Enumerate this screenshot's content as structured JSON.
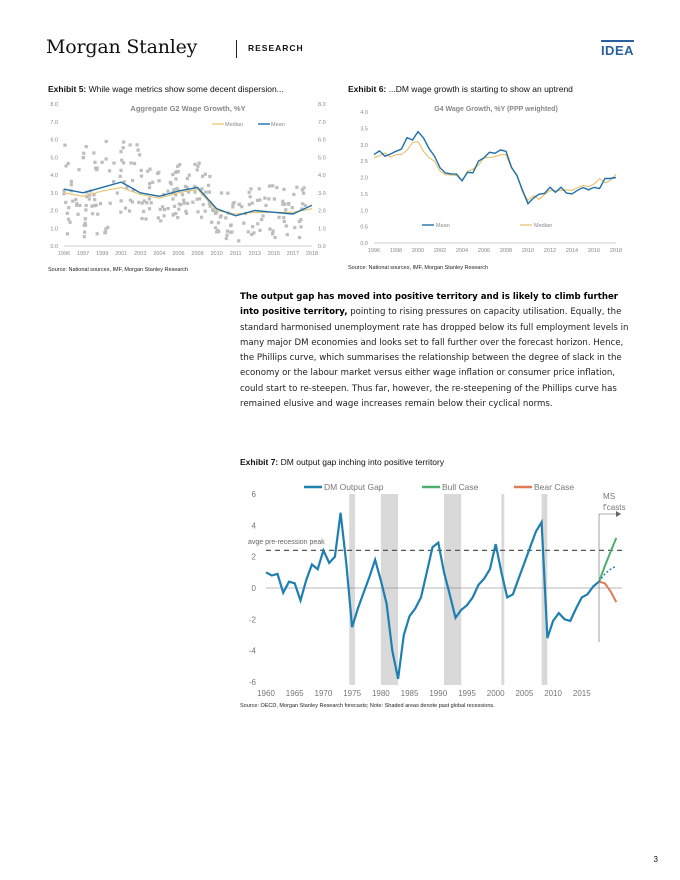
{
  "header": {
    "brand": "Morgan Stanley",
    "section": "RESEARCH",
    "tag": "IDEA"
  },
  "exhibit5": {
    "label": "Exhibit 5:",
    "caption": "While wage metrics show some decent dispersion...",
    "source": "Source: National sources, IMF, Morgan Stanley Research",
    "chart_data": {
      "type": "line",
      "title": "Aggregate G2 Wage Growth, %Y",
      "x": [
        "1996",
        "1997",
        "1999",
        "2001",
        "2003",
        "2004",
        "2006",
        "2008",
        "2010",
        "2011",
        "2013",
        "2015",
        "2017",
        "2018"
      ],
      "yticks": [
        "0.0",
        "1.0",
        "2.0",
        "3.0",
        "4.0",
        "5.0",
        "6.0",
        "7.0",
        "8.0"
      ],
      "ylim": [
        0,
        8
      ],
      "legend": [
        "Median",
        "Mean"
      ],
      "series": [
        {
          "name": "Mean",
          "color": "#1f6fa6",
          "values": [
            3.2,
            3.0,
            3.3,
            3.6,
            3.0,
            2.8,
            3.1,
            3.3,
            2.1,
            1.7,
            2.0,
            1.9,
            1.8,
            2.3
          ]
        },
        {
          "name": "Median",
          "color": "#e5c06a",
          "values": [
            3.0,
            2.8,
            3.1,
            3.3,
            2.9,
            2.7,
            3.0,
            3.2,
            2.0,
            1.8,
            1.9,
            1.9,
            1.9,
            2.1
          ]
        }
      ]
    }
  },
  "exhibit6": {
    "label": "Exhibit 6:",
    "caption": "...DM wage growth is starting to show an uptrend",
    "source": "Source: National sources, IMF, Morgan Stanley Research",
    "chart_data": {
      "type": "line",
      "title": "G4 Wage Growth, %Y (PPP weighted)",
      "x": [
        "1996",
        "1998",
        "2000",
        "2002",
        "2004",
        "2006",
        "2008",
        "2010",
        "2012",
        "2014",
        "2016",
        "2018"
      ],
      "yticks": [
        "0.0",
        "0.5",
        "1.0",
        "1.5",
        "2.0",
        "2.5",
        "3.0",
        "3.5",
        "4.0"
      ],
      "ylim": [
        0,
        4
      ],
      "legend": [
        "Mean",
        "Median"
      ],
      "series": [
        {
          "name": "Mean",
          "color": "#1f6fa6",
          "values": [
            2.7,
            2.8,
            3.4,
            2.3,
            1.9,
            2.6,
            2.8,
            1.2,
            1.7,
            1.5,
            1.7,
            2.0
          ]
        },
        {
          "name": "Median",
          "color": "#e5c06a",
          "values": [
            2.6,
            2.7,
            3.1,
            2.2,
            1.9,
            2.6,
            2.7,
            1.3,
            1.6,
            1.6,
            1.8,
            2.1
          ]
        }
      ]
    }
  },
  "paragraph": {
    "bold_lead": "The output gap has moved into positive territory and is likely to climb further into positive territory,",
    "body": " pointing to rising pressures on capacity utilisation. Equally, the standard harmonised unemployment rate has dropped below its full employment levels in many major DM economies and looks set to fall further over the forecast horizon. Hence, the Phillips curve, which summarises the relationship between the degree of slack in the economy or the labour market versus either wage inflation or consumer price inflation, could start to re-steepen. Thus far, however, the re-steepening of the Phillips curve has remained elusive and wage increases remain below their cyclical norms."
  },
  "exhibit7": {
    "label": "Exhibit 7:",
    "caption": "DM output gap inching into positive territory",
    "source": "Source: OECD, Morgan Stanley Research forecasts; Note: Shaded areas denote past global recessions.",
    "annotation_avg": "avge pre-recession peak",
    "annotation_forecast": "MS f'casts",
    "chart_data": {
      "type": "line",
      "x": [
        1960,
        1965,
        1970,
        1975,
        1980,
        1985,
        1990,
        1995,
        2000,
        2005,
        2010,
        2015
      ],
      "yticks": [
        "6",
        "4",
        "2",
        "0",
        "-2",
        "-4",
        "-6"
      ],
      "ylim": [
        -6,
        6
      ],
      "legend": [
        "DM Output Gap",
        "Bull Case",
        "Bear Case"
      ],
      "avg_pre_recession_peak": 2.4,
      "recessions": [
        [
          1974.5,
          1975.5
        ],
        [
          1980,
          1983
        ],
        [
          1991,
          1994
        ],
        [
          2001,
          2001.5
        ],
        [
          2008,
          2009
        ]
      ],
      "series": [
        {
          "name": "DM Output Gap",
          "color": "#1f7fb0",
          "points": [
            [
              1960,
              1.0
            ],
            [
              1961,
              0.8
            ],
            [
              1962,
              0.9
            ],
            [
              1963,
              -0.3
            ],
            [
              1964,
              0.4
            ],
            [
              1965,
              0.3
            ],
            [
              1966,
              -0.8
            ],
            [
              1967,
              0.5
            ],
            [
              1968,
              1.5
            ],
            [
              1969,
              1.2
            ],
            [
              1970,
              2.4
            ],
            [
              1971,
              1.6
            ],
            [
              1972,
              2.0
            ],
            [
              1973,
              4.8
            ],
            [
              1974,
              1.5
            ],
            [
              1975,
              -2.5
            ],
            [
              1976,
              -1.3
            ],
            [
              1977,
              -0.3
            ],
            [
              1978,
              0.7
            ],
            [
              1979,
              1.8
            ],
            [
              1980,
              0.5
            ],
            [
              1981,
              -1.0
            ],
            [
              1982,
              -4.0
            ],
            [
              1983,
              -5.8
            ],
            [
              1984,
              -3.0
            ],
            [
              1985,
              -1.8
            ],
            [
              1986,
              -1.3
            ],
            [
              1987,
              -0.6
            ],
            [
              1988,
              1.0
            ],
            [
              1989,
              2.6
            ],
            [
              1990,
              2.9
            ],
            [
              1991,
              1.0
            ],
            [
              1992,
              -0.4
            ],
            [
              1993,
              -1.9
            ],
            [
              1994,
              -1.4
            ],
            [
              1995,
              -1.1
            ],
            [
              1996,
              -0.6
            ],
            [
              1997,
              0.2
            ],
            [
              1998,
              0.6
            ],
            [
              1999,
              1.2
            ],
            [
              2000,
              2.8
            ],
            [
              2001,
              1.0
            ],
            [
              2002,
              -0.6
            ],
            [
              2003,
              -0.4
            ],
            [
              2004,
              0.6
            ],
            [
              2005,
              1.6
            ],
            [
              2006,
              2.6
            ],
            [
              2007,
              3.6
            ],
            [
              2008,
              4.2
            ],
            [
              2009,
              -3.2
            ],
            [
              2010,
              -2.1
            ],
            [
              2011,
              -1.6
            ],
            [
              2012,
              -2.0
            ],
            [
              2013,
              -2.1
            ],
            [
              2014,
              -1.3
            ],
            [
              2015,
              -0.6
            ],
            [
              2016,
              -0.4
            ],
            [
              2017,
              0.1
            ],
            [
              2018,
              0.4
            ]
          ]
        },
        {
          "name": "Bull Case",
          "color": "#4caf6e",
          "points": [
            [
              2018,
              0.4
            ],
            [
              2019,
              1.4
            ],
            [
              2020,
              2.3
            ],
            [
              2021,
              3.2
            ]
          ]
        },
        {
          "name": "Bear Case",
          "color": "#e07b53",
          "points": [
            [
              2018,
              0.4
            ],
            [
              2019,
              0.3
            ],
            [
              2020,
              -0.2
            ],
            [
              2021,
              -0.9
            ]
          ]
        },
        {
          "name": "Base",
          "color": "#1f7fb0",
          "points": [
            [
              2018,
              0.4
            ],
            [
              2019,
              0.9
            ],
            [
              2020,
              1.2
            ],
            [
              2021,
              1.4
            ]
          ]
        }
      ]
    }
  },
  "page_number": "3"
}
